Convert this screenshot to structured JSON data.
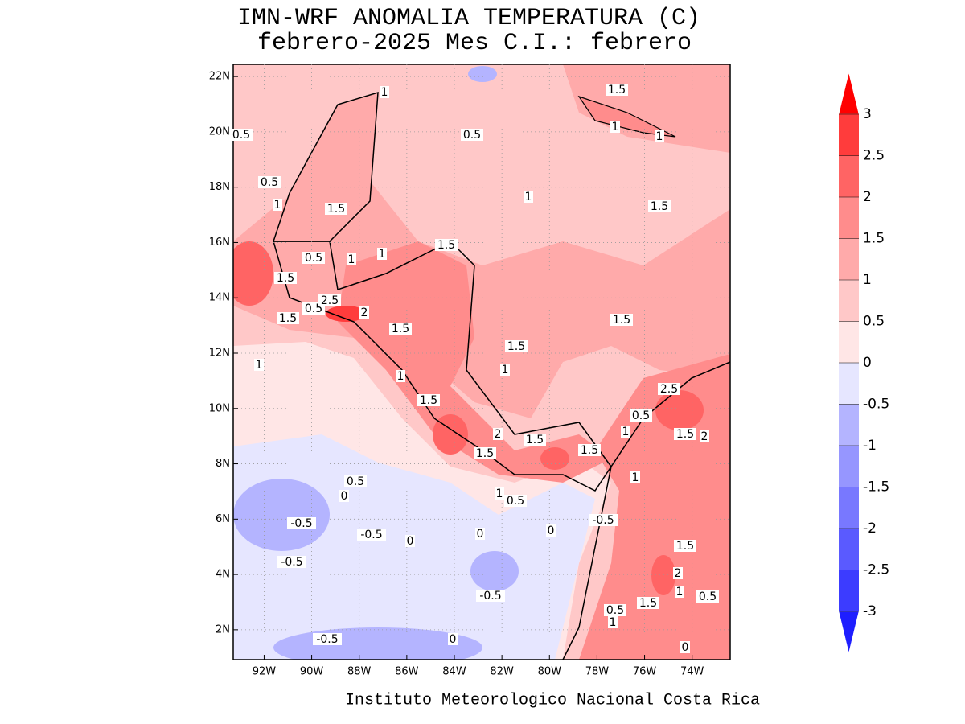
{
  "title": "IMN-WRF  ANOMALIA TEMPERATURA (C)",
  "subtitle": "febrero-2025 Mes C.I.: febrero",
  "footer": "Instituto Meteorologico Nacional Costa Rica",
  "map": {
    "xlim": [
      -93.3,
      -72.4
    ],
    "ylim": [
      0.92,
      22.44
    ],
    "xticks": [
      {
        "value": -92,
        "label": "92W"
      },
      {
        "value": -90,
        "label": "90W"
      },
      {
        "value": -88,
        "label": "88W"
      },
      {
        "value": -86,
        "label": "86W"
      },
      {
        "value": -84,
        "label": "84W"
      },
      {
        "value": -82,
        "label": "82W"
      },
      {
        "value": -80,
        "label": "80W"
      },
      {
        "value": -78,
        "label": "78W"
      },
      {
        "value": -76,
        "label": "76W"
      },
      {
        "value": -74,
        "label": "74W"
      }
    ],
    "yticks": [
      {
        "value": 2,
        "label": "2N"
      },
      {
        "value": 4,
        "label": "4N"
      },
      {
        "value": 6,
        "label": "6N"
      },
      {
        "value": 8,
        "label": "8N"
      },
      {
        "value": 10,
        "label": "10N"
      },
      {
        "value": 12,
        "label": "12N"
      },
      {
        "value": 14,
        "label": "14N"
      },
      {
        "value": 16,
        "label": "16N"
      },
      {
        "value": 18,
        "label": "18N"
      },
      {
        "value": 20,
        "label": "20N"
      },
      {
        "value": 22,
        "label": "22N"
      }
    ],
    "contour_labels": [
      1,
      0.5,
      0.5,
      1.5,
      1,
      1,
      0.5,
      1,
      1.5,
      1,
      1.5,
      1.5,
      0.5,
      1,
      1,
      1.5,
      1.5,
      0.5,
      2.5,
      2,
      1.5,
      1.5,
      1.5,
      1,
      1,
      1,
      1.5,
      2.5,
      0.5,
      1,
      1.5,
      2,
      2,
      1.5,
      1.5,
      1.5,
      0.5,
      0,
      0.5,
      1,
      1,
      -0.5,
      -0.5,
      0,
      0,
      0,
      -0.5,
      1.5,
      -0.5,
      2,
      1,
      0.5,
      -0.5,
      0.5,
      1,
      1.5,
      -0.5,
      0,
      0
    ]
  },
  "colorbar": {
    "levels": [
      -3,
      -2.5,
      -2,
      -1.5,
      -1,
      -0.5,
      0,
      0.5,
      1,
      1.5,
      2,
      2.5,
      3
    ],
    "colors": [
      "#1e1eff",
      "#3c3cff",
      "#5a5aff",
      "#7878ff",
      "#9696ff",
      "#b4b4ff",
      "#e6e6ff",
      "#ffe6e6",
      "#ffc8c8",
      "#ffaaaa",
      "#ff8c8c",
      "#ff6464",
      "#ff3c3c",
      "#ff0000"
    ]
  }
}
